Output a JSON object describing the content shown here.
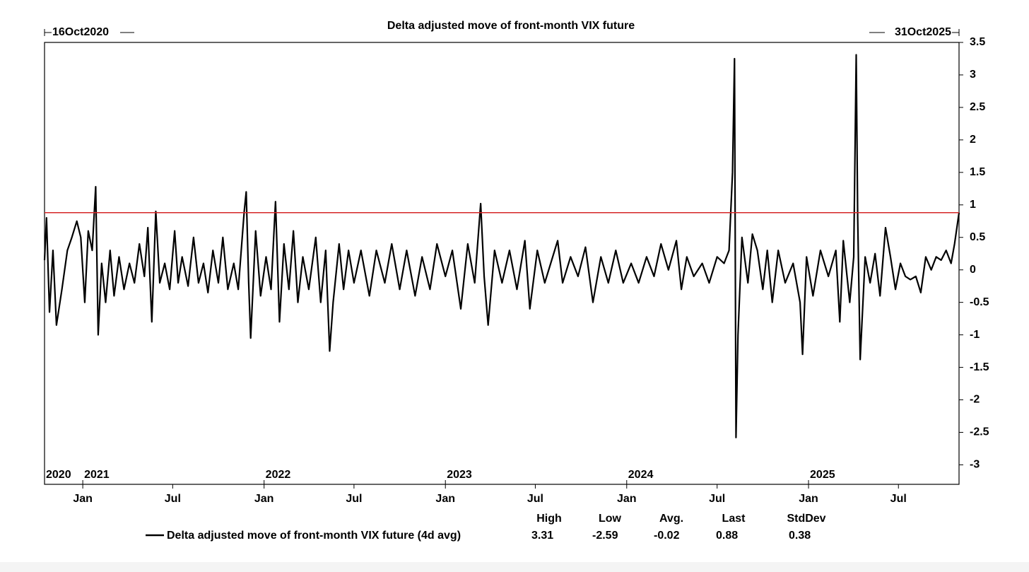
{
  "chart_data": {
    "type": "line",
    "title": "Delta adjusted move of front-month VIX future",
    "start_label": "16Oct2020",
    "end_label": "31Oct2025",
    "xlim": [
      "2020-10-16",
      "2025-10-31"
    ],
    "ylim": [
      -3.3,
      3.5
    ],
    "yticks": [
      3.5,
      3,
      2.5,
      2,
      1.5,
      1,
      0.5,
      0,
      -0.5,
      -1,
      -1.5,
      -2,
      -2.5,
      -3
    ],
    "xticks": [
      {
        "value": "2021-01-01",
        "label": "Jan"
      },
      {
        "value": "2021-07-01",
        "label": "Jul"
      },
      {
        "value": "2022-01-01",
        "label": "Jan"
      },
      {
        "value": "2022-07-01",
        "label": "Jul"
      },
      {
        "value": "2023-01-01",
        "label": "Jan"
      },
      {
        "value": "2023-07-01",
        "label": "Jul"
      },
      {
        "value": "2024-01-01",
        "label": "Jan"
      },
      {
        "value": "2024-07-01",
        "label": "Jul"
      },
      {
        "value": "2025-01-01",
        "label": "Jan"
      },
      {
        "value": "2025-07-01",
        "label": "Jul"
      }
    ],
    "year_ticks": [
      {
        "value": "2020-10-16",
        "label": "2020"
      },
      {
        "value": "2021-01-01",
        "label": "2021"
      },
      {
        "value": "2022-01-01",
        "label": "2022"
      },
      {
        "value": "2023-01-01",
        "label": "2023"
      },
      {
        "value": "2024-01-01",
        "label": "2024"
      },
      {
        "value": "2025-01-01",
        "label": "2025"
      }
    ],
    "reference_line": {
      "value": 0.88,
      "color": "#d62728"
    },
    "stats": {
      "headers": [
        "High",
        "Low",
        "Avg.",
        "Last",
        "StdDev"
      ],
      "values": [
        3.31,
        -2.59,
        -0.02,
        0.88,
        0.38
      ]
    },
    "series": [
      {
        "name": "Delta adjusted move of front-month VIX future (4d avg)",
        "color": "#000000",
        "x": [
          "2020-10-16",
          "2020-10-20",
          "2020-10-26",
          "2020-11-02",
          "2020-11-09",
          "2020-11-20",
          "2020-12-01",
          "2020-12-10",
          "2020-12-20",
          "2020-12-28",
          "2021-01-05",
          "2021-01-12",
          "2021-01-20",
          "2021-01-27",
          "2021-02-01",
          "2021-02-08",
          "2021-02-16",
          "2021-02-25",
          "2021-03-05",
          "2021-03-15",
          "2021-03-25",
          "2021-04-05",
          "2021-04-15",
          "2021-04-25",
          "2021-05-05",
          "2021-05-12",
          "2021-05-20",
          "2021-05-28",
          "2021-06-05",
          "2021-06-15",
          "2021-06-25",
          "2021-07-05",
          "2021-07-12",
          "2021-07-20",
          "2021-08-01",
          "2021-08-12",
          "2021-08-22",
          "2021-09-01",
          "2021-09-10",
          "2021-09-20",
          "2021-10-01",
          "2021-10-10",
          "2021-10-20",
          "2021-11-01",
          "2021-11-10",
          "2021-11-22",
          "2021-11-26",
          "2021-12-01",
          "2021-12-05",
          "2021-12-15",
          "2021-12-25",
          "2022-01-05",
          "2022-01-15",
          "2022-01-24",
          "2022-02-01",
          "2022-02-10",
          "2022-02-20",
          "2022-03-01",
          "2022-03-10",
          "2022-03-20",
          "2022-04-01",
          "2022-04-15",
          "2022-04-25",
          "2022-05-05",
          "2022-05-13",
          "2022-05-20",
          "2022-06-01",
          "2022-06-10",
          "2022-06-20",
          "2022-07-01",
          "2022-07-15",
          "2022-08-01",
          "2022-08-15",
          "2022-09-01",
          "2022-09-15",
          "2022-10-01",
          "2022-10-15",
          "2022-11-01",
          "2022-11-15",
          "2022-12-01",
          "2022-12-15",
          "2023-01-01",
          "2023-01-15",
          "2023-02-01",
          "2023-02-15",
          "2023-03-01",
          "2023-03-13",
          "2023-03-20",
          "2023-03-28",
          "2023-04-10",
          "2023-04-25",
          "2023-05-10",
          "2023-05-25",
          "2023-06-10",
          "2023-06-20",
          "2023-07-05",
          "2023-07-20",
          "2023-08-01",
          "2023-08-15",
          "2023-08-25",
          "2023-09-10",
          "2023-09-25",
          "2023-10-10",
          "2023-10-25",
          "2023-11-10",
          "2023-11-25",
          "2023-12-10",
          "2023-12-25",
          "2024-01-10",
          "2024-01-25",
          "2024-02-10",
          "2024-02-25",
          "2024-03-10",
          "2024-03-25",
          "2024-04-10",
          "2024-04-20",
          "2024-05-01",
          "2024-05-15",
          "2024-06-01",
          "2024-06-15",
          "2024-07-01",
          "2024-07-15",
          "2024-07-25",
          "2024-08-01",
          "2024-08-05",
          "2024-08-08",
          "2024-08-12",
          "2024-08-20",
          "2024-09-01",
          "2024-09-10",
          "2024-09-20",
          "2024-10-01",
          "2024-10-10",
          "2024-10-20",
          "2024-11-01",
          "2024-11-15",
          "2024-12-01",
          "2024-12-15",
          "2024-12-20",
          "2024-12-28",
          "2025-01-10",
          "2025-01-25",
          "2025-02-10",
          "2025-02-25",
          "2025-03-05",
          "2025-03-12",
          "2025-03-25",
          "2025-04-02",
          "2025-04-07",
          "2025-04-10",
          "2025-04-15",
          "2025-04-25",
          "2025-05-05",
          "2025-05-15",
          "2025-05-25",
          "2025-06-05",
          "2025-06-15",
          "2025-06-25",
          "2025-07-05",
          "2025-07-15",
          "2025-07-25",
          "2025-08-05",
          "2025-08-15",
          "2025-08-25",
          "2025-09-05",
          "2025-09-15",
          "2025-09-25",
          "2025-10-05",
          "2025-10-15",
          "2025-10-22",
          "2025-10-31"
        ],
        "values": [
          0.15,
          0.8,
          -0.65,
          0.3,
          -0.85,
          -0.3,
          0.3,
          0.5,
          0.75,
          0.5,
          -0.5,
          0.6,
          0.3,
          1.28,
          -1.0,
          0.1,
          -0.5,
          0.3,
          -0.4,
          0.2,
          -0.3,
          0.1,
          -0.2,
          0.4,
          -0.1,
          0.65,
          -0.8,
          0.9,
          -0.2,
          0.1,
          -0.3,
          0.6,
          -0.2,
          0.2,
          -0.25,
          0.5,
          -0.2,
          0.1,
          -0.35,
          0.3,
          -0.2,
          0.5,
          -0.3,
          0.1,
          -0.3,
          0.9,
          1.2,
          -0.2,
          -1.05,
          0.6,
          -0.4,
          0.2,
          -0.3,
          1.05,
          -0.8,
          0.4,
          -0.3,
          0.6,
          -0.5,
          0.2,
          -0.3,
          0.5,
          -0.5,
          0.3,
          -1.25,
          -0.5,
          0.4,
          -0.3,
          0.3,
          -0.2,
          0.3,
          -0.4,
          0.3,
          -0.2,
          0.4,
          -0.3,
          0.3,
          -0.4,
          0.2,
          -0.3,
          0.4,
          -0.1,
          0.3,
          -0.6,
          0.4,
          -0.2,
          1.02,
          -0.1,
          -0.85,
          0.3,
          -0.2,
          0.3,
          -0.3,
          0.45,
          -0.6,
          0.3,
          -0.2,
          0.1,
          0.45,
          -0.2,
          0.2,
          -0.1,
          0.35,
          -0.5,
          0.2,
          -0.2,
          0.3,
          -0.2,
          0.1,
          -0.2,
          0.2,
          -0.1,
          0.4,
          0.0,
          0.45,
          -0.3,
          0.2,
          -0.1,
          0.1,
          -0.2,
          0.2,
          0.1,
          0.3,
          1.5,
          3.25,
          -2.58,
          -1.0,
          0.5,
          -0.2,
          0.55,
          0.3,
          -0.3,
          0.3,
          -0.5,
          0.3,
          -0.2,
          0.1,
          -0.5,
          -1.3,
          0.2,
          -0.4,
          0.3,
          -0.1,
          0.3,
          -0.8,
          0.45,
          -0.5,
          0.2,
          3.31,
          0.8,
          -1.38,
          0.2,
          -0.2,
          0.25,
          -0.4,
          0.65,
          0.2,
          -0.3,
          0.1,
          -0.1,
          -0.15,
          -0.1,
          -0.35,
          0.2,
          0.0,
          0.2,
          0.15,
          0.3,
          0.1,
          0.4,
          0.88
        ]
      }
    ]
  }
}
